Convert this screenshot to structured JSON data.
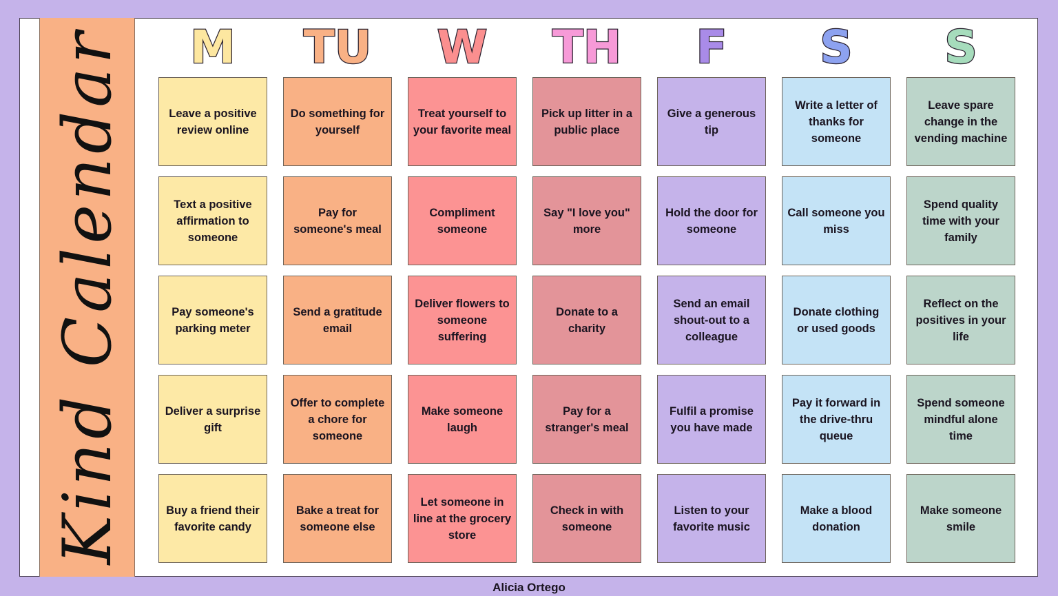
{
  "title": "Kind Calendar",
  "author": "Alicia Ortego",
  "colors": {
    "background": "#c5b3ea",
    "side_strip": "#f9b185"
  },
  "days": [
    {
      "label": "M",
      "letter_color": "#fde7a0",
      "card_color": "#fde9a6"
    },
    {
      "label": "TU",
      "letter_color": "#f9b185",
      "card_color": "#f9b185"
    },
    {
      "label": "W",
      "letter_color": "#fb8f8f",
      "card_color": "#fc9393"
    },
    {
      "label": "TH",
      "letter_color": "#f79ad8",
      "card_color": "#e39499"
    },
    {
      "label": "F",
      "letter_color": "#a98be8",
      "card_color": "#c5b3ea"
    },
    {
      "label": "S",
      "letter_color": "#8da2f0",
      "card_color": "#c4e3f6"
    },
    {
      "label": "S",
      "letter_color": "#a6dcbc",
      "card_color": "#bcd5ca"
    }
  ],
  "grid": [
    [
      "Leave a positive review online",
      "Do something for yourself",
      "Treat yourself to your favorite meal",
      "Pick up litter in a public place",
      "Give a generous tip",
      "Write a letter of thanks for someone",
      "Leave spare change in the vending machine"
    ],
    [
      "Text a positive affirmation to someone",
      "Pay for someone's meal",
      "Compliment someone",
      "Say \"I love you\" more",
      "Hold the door for someone",
      "Call someone you miss",
      "Spend quality time with your family"
    ],
    [
      "Pay someone's parking meter",
      "Send a gratitude email",
      "Deliver flowers to someone suffering",
      "Donate to a charity",
      "Send an email shout-out to a colleague",
      "Donate clothing or used goods",
      "Reflect on the positives in your life"
    ],
    [
      "Deliver a surprise gift",
      "Offer to complete a chore for someone",
      "Make someone laugh",
      "Pay for a stranger's meal",
      "Fulfil a promise you have made",
      "Pay it forward in the drive-thru queue",
      "Spend someone mindful alone time"
    ],
    [
      "Buy a friend their favorite candy",
      "Bake a treat for someone else",
      "Let someone in line at the grocery store",
      "Check in with someone",
      "Listen to your favorite music",
      "Make a blood donation",
      "Make someone smile"
    ]
  ]
}
